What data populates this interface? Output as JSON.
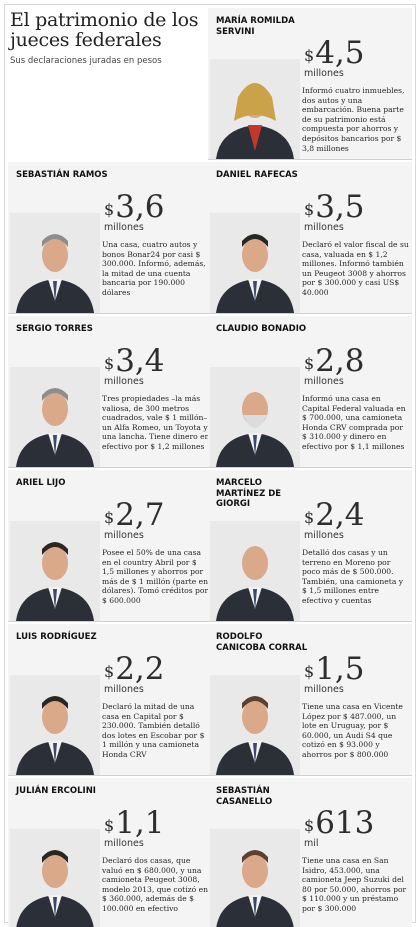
{
  "header": {
    "title": "El patrimonio de los jueces federales",
    "subtitle": "Sus declaraciones juradas en pesos"
  },
  "currency_symbol": "$",
  "judges": [
    {
      "name": "MARÍA ROMILDA SERVINI",
      "amount": "4,5",
      "unit": "millones",
      "description": "Informó cuatro inmuebles, dos autos y una embarcación. Buena parte de su patrimonio está compuesta por ahorros y depósitos bancarios por $ 3,8 millones"
    },
    {
      "name": "SEBASTIÁN RAMOS",
      "amount": "3,6",
      "unit": "millones",
      "description": "Una casa, cuatro autos y bonos Bonar24 por casi $ 300.000. Informó, además, la mitad de una cuenta bancaria por 190.000 dólares"
    },
    {
      "name": "DANIEL RAFECAS",
      "amount": "3,5",
      "unit": "millones",
      "description": "Declaró el valor fiscal de su casa, valuada en $ 1,2 millones. Informó también un Peugeot 3008 y ahorros por $ 300.000 y casi US$ 40.000"
    },
    {
      "name": "SERGIO TORRES",
      "amount": "3,4",
      "unit": "millones",
      "description": "Tres propiedades –la más valiosa, de 300 metros cuadrados, vale $ 1 millón– un Alfa Romeo, un Toyota y una lancha. Tiene dinero en efectivo por $ 1,2 millones"
    },
    {
      "name": "CLAUDIO BONADIO",
      "amount": "2,8",
      "unit": "millones",
      "description": "Informó una casa en Capital Federal valuada en $ 700.000, una camioneta Honda CRV comprada por $ 310.000 y dinero en efectivo por $ 1,1 millones"
    },
    {
      "name": "ARIEL LIJO",
      "amount": "2,7",
      "unit": "millones",
      "description": "Posee el 50% de una casa en el country Abril por $ 1,5 millones y ahorros por más de $ 1 millón (parte en dólares). Tomó créditos por $ 600.000"
    },
    {
      "name": "MARCELO MARTÍNEZ DE GIORGI",
      "amount": "2,4",
      "unit": "millones",
      "description": "Detalló dos casas y un terreno en Moreno por poco más de $ 500.000. También, una camioneta y $ 1,5 millones entre efectivo y cuentas"
    },
    {
      "name": "LUIS RODRÍGUEZ",
      "amount": "2,2",
      "unit": "millones",
      "description": "Declaró la mitad de una casa en Capital por $ 230.000. También detalló dos lotes en Escobar por $ 1 millón y una camioneta Honda CRV"
    },
    {
      "name": "RODOLFO CANICOBA CORRAL",
      "amount": "1,5",
      "unit": "millones",
      "description": "Tiene una casa en Vicente López por $ 487.000, un lote en Uruguay, por $ 60.000, un Audi S4 que cotizó en $ 93.000 y ahorros por $ 800.000"
    },
    {
      "name": "JULIÁN ERCOLINI",
      "amount": "1,1",
      "unit": "millones",
      "description": "Declaró dos casas, que valuó en $ 680.000, y una camioneta Peugeot 3008, modelo 2013, que cotizó en $ 360.000, además de $ 100.000 en efectivo"
    },
    {
      "name": "SEBASTIÁN CASANELLO",
      "amount": "613",
      "unit": "mil",
      "description": "Tiene una casa en San Isidro, 453.000, una camioneta Jeep Suzuki del 80 por 50.000, ahorros por $ 110.000 y un préstamo por $ 300.000"
    }
  ],
  "colors": {
    "card_background": "#f4f4f4",
    "suit_dark": "#2b2f38",
    "skin": "#d9a98a"
  }
}
